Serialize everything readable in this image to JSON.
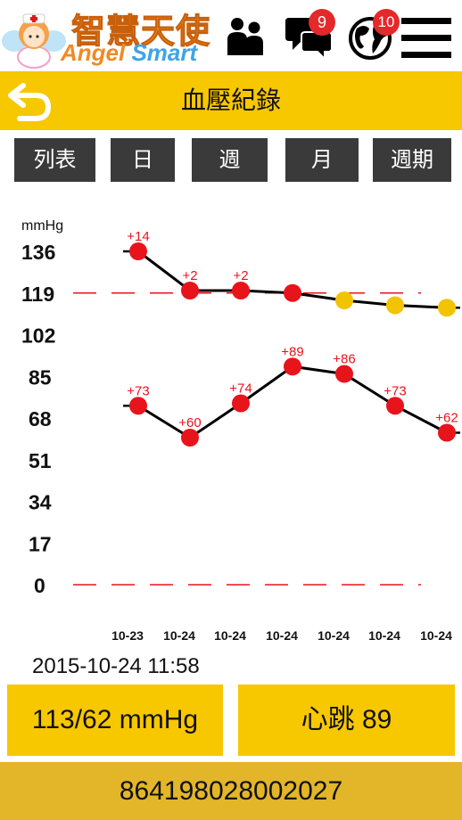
{
  "header": {
    "logo_cn": "智慧天使",
    "logo_en_a": "Angel",
    "logo_en_b": "Smart",
    "messages_badge": "9",
    "global_badge": "10"
  },
  "titlebar": {
    "title": "血壓紀錄"
  },
  "tabs": [
    "列表",
    "日",
    "週",
    "月",
    "週期"
  ],
  "chart_data": {
    "type": "line",
    "ylabel": "mmHg",
    "ylim": [
      0,
      136
    ],
    "yticks": [
      "136",
      "119",
      "102",
      "85",
      "68",
      "51",
      "34",
      "17",
      "0"
    ],
    "categories": [
      "10-23",
      "10-24",
      "10-24",
      "10-24",
      "10-24",
      "10-24",
      "10-24"
    ],
    "reference_lines": [
      119,
      0
    ],
    "series": [
      {
        "values": [
          136,
          120,
          120,
          119,
          116,
          114,
          113
        ],
        "labels": [
          "+14",
          "+2",
          "+2",
          "",
          "",
          "",
          ""
        ],
        "point_colors": [
          "#e8141c",
          "#e8141c",
          "#e8141c",
          "#e8141c",
          "#f2c300",
          "#f2c300",
          "#f2c300"
        ]
      },
      {
        "values": [
          73,
          60,
          74,
          89,
          86,
          73,
          62
        ],
        "labels": [
          "+73",
          "+60",
          "+74",
          "+89",
          "+86",
          "+73",
          "+62"
        ],
        "point_colors": [
          "#e8141c",
          "#e8141c",
          "#e8141c",
          "#e8141c",
          "#e8141c",
          "#e8141c",
          "#e8141c"
        ]
      }
    ]
  },
  "reading": {
    "datetime": "2015-10-24 11:58",
    "pressure": "113/62 mmHg",
    "heartrate": "心跳 89"
  },
  "footer": {
    "device_id": "864198028002027"
  },
  "colors": {
    "accent": "#f7c700",
    "tab_bg": "#3a3a3a",
    "alert_red": "#e8141c",
    "warn_yellow": "#f2c300"
  }
}
